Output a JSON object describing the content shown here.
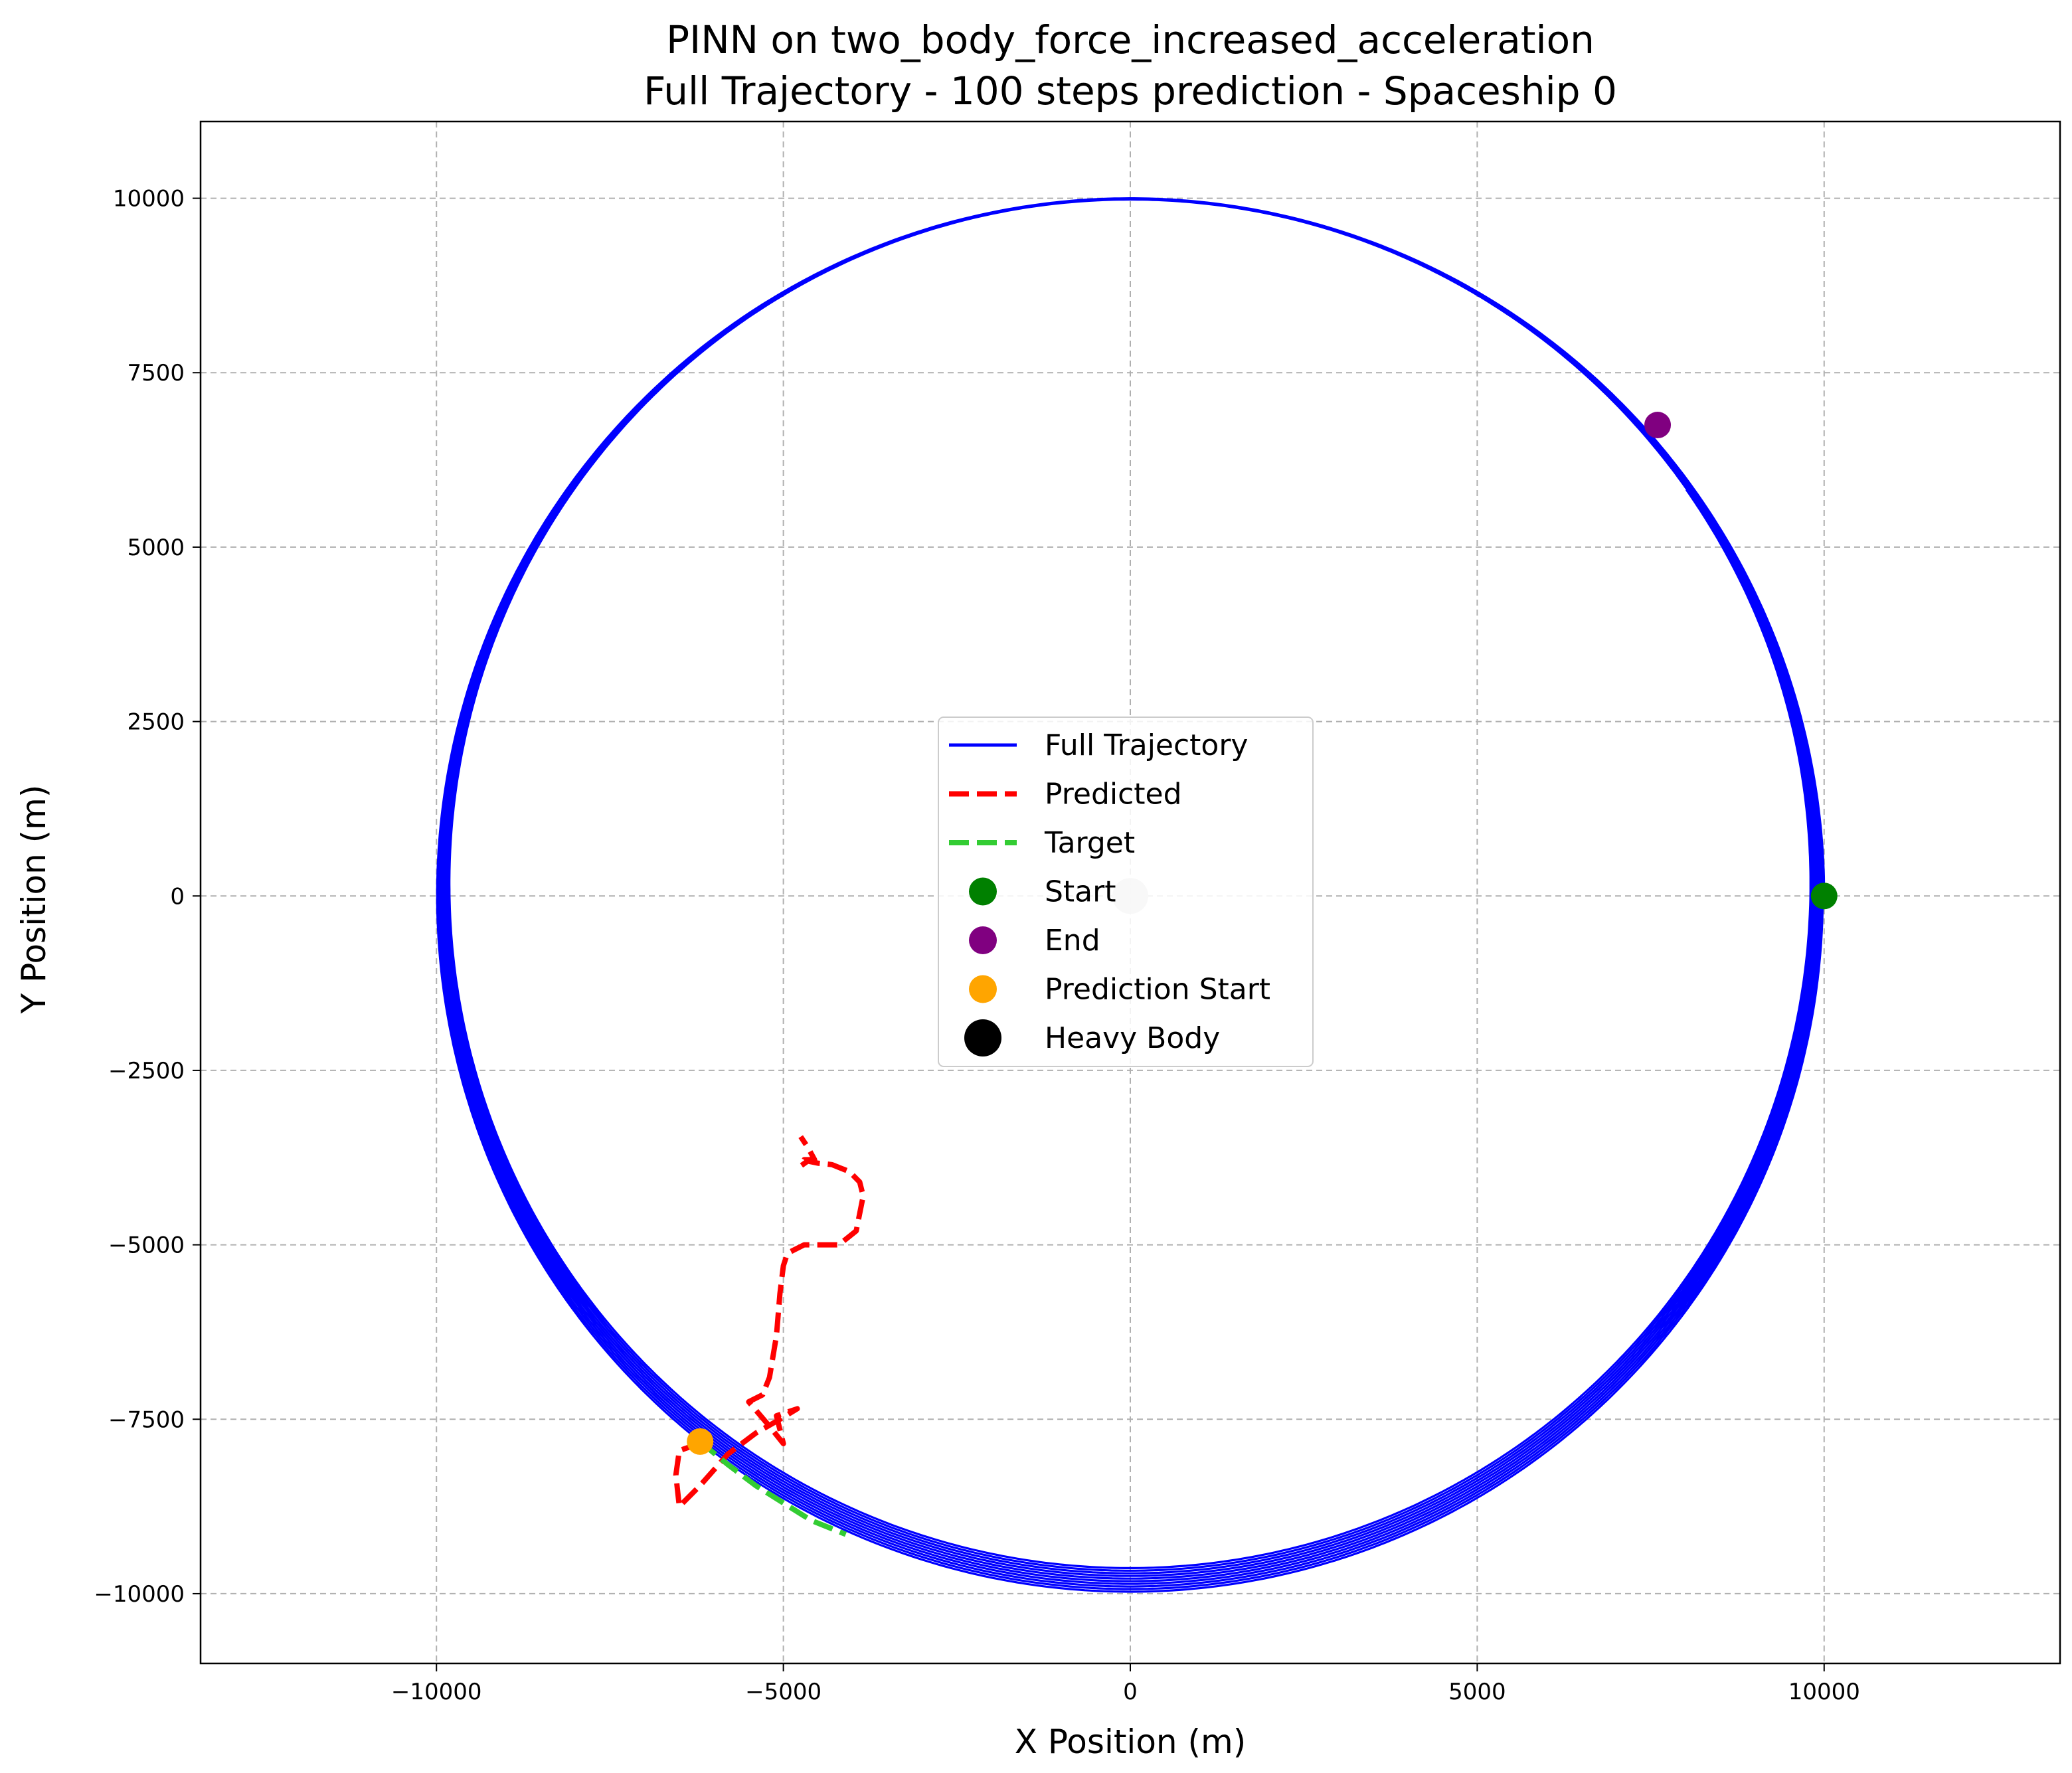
{
  "chart_data": {
    "type": "line",
    "title": "PINN on two_body_force_increased_acceleration",
    "subtitle": "Full Trajectory - 100 steps prediction - Spaceship 0",
    "xlabel": "X Position (m)",
    "ylabel": "Y Position (m)",
    "xlim": [
      -13400,
      13400
    ],
    "ylim": [
      -11000,
      11100
    ],
    "xticks": [
      -10000,
      -5000,
      0,
      5000,
      10000
    ],
    "yticks": [
      -10000,
      -7500,
      -5000,
      -2500,
      0,
      2500,
      5000,
      7500,
      10000
    ],
    "grid": true,
    "legend_position": "center",
    "series": [
      {
        "name": "Full Trajectory",
        "kind": "orbit",
        "color": "#0000ff",
        "orbit": {
          "radius_start": 10000,
          "radius_end": 9800,
          "turns": 10.1,
          "start_angle_deg": 0,
          "end_angle_deg": 41.6
        }
      },
      {
        "name": "Predicted",
        "kind": "dashed-line",
        "color": "#ff0000",
        "x": [
          -6200,
          -6300,
          -6500,
          -6550,
          -6500,
          -6200,
          -5800,
          -5400,
          -5050,
          -4800,
          -5100,
          -5000,
          -5200,
          -5500,
          -5300,
          -5200,
          -5100,
          -5050,
          -5000,
          -4950,
          -4900,
          -4700,
          -4200,
          -3950,
          -3850,
          -3900,
          -4050,
          -4300,
          -4500,
          -4650,
          -4750,
          -4700,
          -4550,
          -4650,
          -4750
        ],
        "y": [
          -7820,
          -7880,
          -7950,
          -8300,
          -8750,
          -8450,
          -8000,
          -7700,
          -7500,
          -7350,
          -7450,
          -7850,
          -7600,
          -7250,
          -7150,
          -6900,
          -6300,
          -5700,
          -5300,
          -5150,
          -5100,
          -5000,
          -5000,
          -4800,
          -4300,
          -4100,
          -3950,
          -3850,
          -3830,
          -3800,
          -3870,
          -3780,
          -3780,
          -3600,
          -3450
        ]
      },
      {
        "name": "Target",
        "kind": "dashed-line",
        "color": "#33cc33",
        "x": [
          -6200,
          -5800,
          -5400,
          -5000,
          -4600,
          -4100
        ],
        "y": [
          -7820,
          -8150,
          -8450,
          -8700,
          -8950,
          -9150
        ]
      }
    ],
    "markers": [
      {
        "name": "Start",
        "color": "#008000",
        "x": 10000,
        "y": 0
      },
      {
        "name": "End",
        "color": "#800080",
        "x": 7600,
        "y": 6750
      },
      {
        "name": "Prediction Start",
        "color": "#ffa500",
        "x": -6200,
        "y": -7820
      },
      {
        "name": "Heavy Body",
        "color": "#000000",
        "x": 0,
        "y": 0
      }
    ],
    "legend": [
      "Full Trajectory",
      "Predicted",
      "Target",
      "Start",
      "End",
      "Prediction Start",
      "Heavy Body"
    ]
  }
}
